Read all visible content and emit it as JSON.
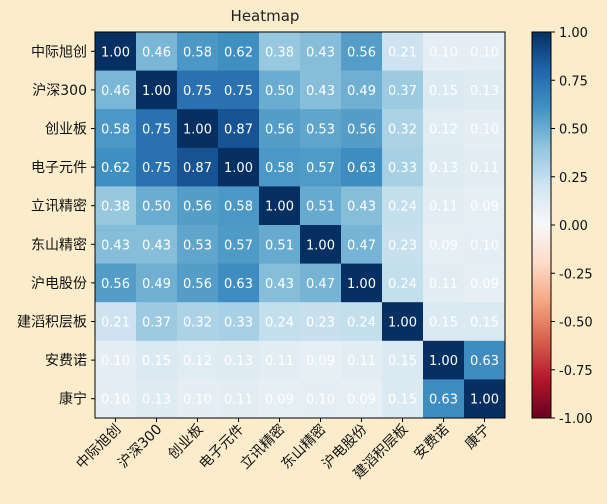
{
  "chart_data": {
    "type": "heatmap",
    "title": "Heatmap",
    "labels": [
      "中际旭创",
      "沪深300",
      "创业板",
      "电子元件",
      "立讯精密",
      "东山精密",
      "沪电股份",
      "建滔积层板",
      "安费诺",
      "康宁"
    ],
    "matrix": [
      [
        1.0,
        0.46,
        0.58,
        0.62,
        0.38,
        0.43,
        0.56,
        0.21,
        0.1,
        0.1
      ],
      [
        0.46,
        1.0,
        0.75,
        0.75,
        0.5,
        0.43,
        0.49,
        0.37,
        0.15,
        0.13
      ],
      [
        0.58,
        0.75,
        1.0,
        0.87,
        0.56,
        0.53,
        0.56,
        0.32,
        0.12,
        0.1
      ],
      [
        0.62,
        0.75,
        0.87,
        1.0,
        0.58,
        0.57,
        0.63,
        0.33,
        0.13,
        0.11
      ],
      [
        0.38,
        0.5,
        0.56,
        0.58,
        1.0,
        0.51,
        0.43,
        0.24,
        0.11,
        0.09
      ],
      [
        0.43,
        0.43,
        0.53,
        0.57,
        0.51,
        1.0,
        0.47,
        0.23,
        0.09,
        0.1
      ],
      [
        0.56,
        0.49,
        0.56,
        0.63,
        0.43,
        0.47,
        1.0,
        0.24,
        0.11,
        0.09
      ],
      [
        0.21,
        0.37,
        0.32,
        0.33,
        0.24,
        0.23,
        0.24,
        1.0,
        0.15,
        0.15
      ],
      [
        0.1,
        0.15,
        0.12,
        0.13,
        0.11,
        0.09,
        0.11,
        0.15,
        1.0,
        0.63
      ],
      [
        0.1,
        0.13,
        0.1,
        0.11,
        0.09,
        0.1,
        0.09,
        0.15,
        0.63,
        1.0
      ]
    ],
    "colormap": "RdBu",
    "vmin": -1.0,
    "vmax": 1.0,
    "colorbar_ticks": [
      "1.00",
      "0.75",
      "0.50",
      "0.25",
      "0.00",
      "-0.25",
      "-0.50",
      "-0.75",
      "-1.00"
    ],
    "xlabel": "",
    "ylabel": "",
    "x_tick_rotation_deg": 45,
    "grid": false
  },
  "colors": {
    "background": "#fbeccb",
    "axes_edge": "#000000",
    "text": "#000000",
    "cell_text": "#ffffff"
  }
}
